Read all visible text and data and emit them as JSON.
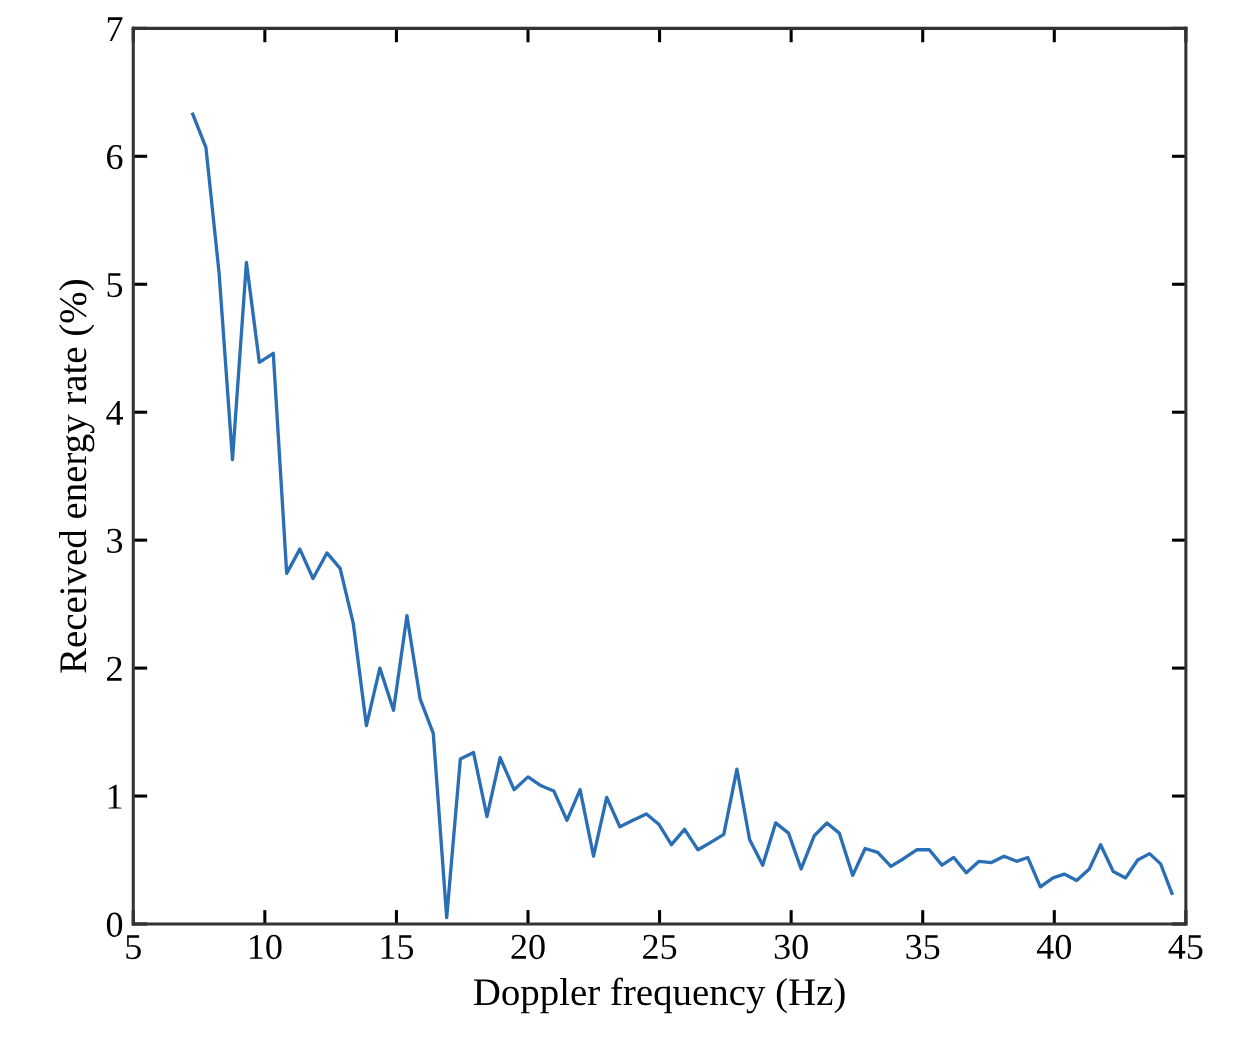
{
  "chart_data": {
    "type": "line",
    "xlabel": "Doppler frequency (Hz)",
    "ylabel": "Received energy rate (%)",
    "xlim": [
      5,
      45
    ],
    "ylim": [
      0,
      7
    ],
    "xticks": [
      5,
      10,
      15,
      20,
      25,
      30,
      35,
      40,
      45
    ],
    "yticks": [
      0,
      1,
      2,
      3,
      4,
      5,
      6,
      7
    ],
    "grid": false,
    "legend": false,
    "marker": "none",
    "line_style": "solid",
    "series": [
      {
        "color": "#2a6eb5",
        "x": [
          7.26,
          7.76,
          8.26,
          8.77,
          9.3,
          9.79,
          10.32,
          10.83,
          11.33,
          11.83,
          12.36,
          12.86,
          13.36,
          13.86,
          14.37,
          14.89,
          15.4,
          15.9,
          16.4,
          16.91,
          17.43,
          17.93,
          18.44,
          18.94,
          19.47,
          20.0,
          20.5,
          20.98,
          21.48,
          21.98,
          22.49,
          22.99,
          23.49,
          23.99,
          24.5,
          24.97,
          25.45,
          25.95,
          26.46,
          26.96,
          27.44,
          27.94,
          28.42,
          28.92,
          29.41,
          29.9,
          30.38,
          30.88,
          31.36,
          31.83,
          32.34,
          32.81,
          33.29,
          33.79,
          34.27,
          34.77,
          35.25,
          35.73,
          36.18,
          36.66,
          37.14,
          37.61,
          38.09,
          38.57,
          38.99,
          39.47,
          39.95,
          40.38,
          40.85,
          41.33,
          41.76,
          42.24,
          42.71,
          43.17,
          43.62,
          44.04,
          44.47
        ],
        "values": [
          6.33,
          6.07,
          5.09,
          3.63,
          5.17,
          4.39,
          4.46,
          2.74,
          2.93,
          2.7,
          2.9,
          2.78,
          2.35,
          1.55,
          2.0,
          1.67,
          2.41,
          1.76,
          1.49,
          0.05,
          1.29,
          1.34,
          0.84,
          1.3,
          1.05,
          1.15,
          1.08,
          1.04,
          0.81,
          1.05,
          0.53,
          0.99,
          0.76,
          0.81,
          0.86,
          0.78,
          0.62,
          0.74,
          0.58,
          0.64,
          0.7,
          1.21,
          0.66,
          0.46,
          0.79,
          0.71,
          0.43,
          0.69,
          0.79,
          0.71,
          0.38,
          0.59,
          0.56,
          0.45,
          0.51,
          0.58,
          0.58,
          0.46,
          0.52,
          0.4,
          0.49,
          0.48,
          0.53,
          0.49,
          0.52,
          0.29,
          0.36,
          0.39,
          0.34,
          0.43,
          0.62,
          0.41,
          0.36,
          0.5,
          0.55,
          0.47,
          0.24
        ]
      }
    ]
  }
}
